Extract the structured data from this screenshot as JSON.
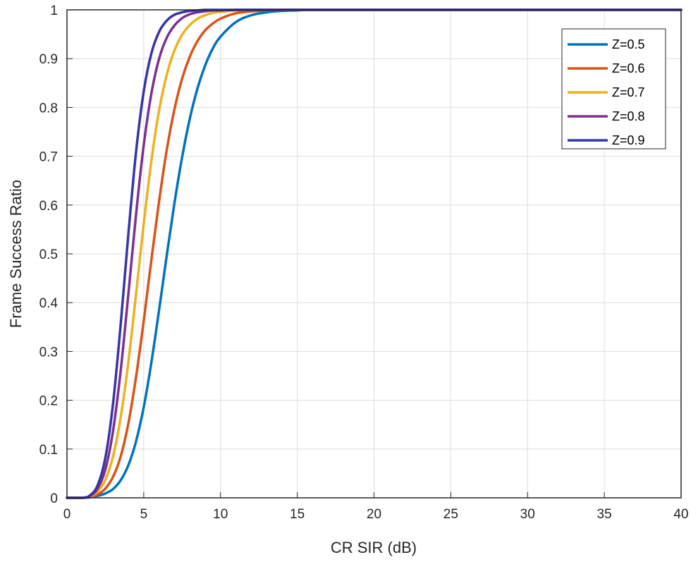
{
  "chart_data": {
    "type": "line",
    "title": "",
    "xlabel": "CR SIR (dB)",
    "ylabel": "Frame Success Ratio",
    "xlim": [
      0,
      40
    ],
    "ylim": [
      0,
      1
    ],
    "x_ticks": [
      0,
      5,
      10,
      15,
      20,
      25,
      30,
      35,
      40
    ],
    "y_ticks": [
      0,
      0.1,
      0.2,
      0.3,
      0.4,
      0.5,
      0.6,
      0.7,
      0.8,
      0.9,
      1
    ],
    "x_tick_labels": [
      "0",
      "5",
      "10",
      "15",
      "20",
      "25",
      "30",
      "35",
      "40"
    ],
    "y_tick_labels": [
      "0",
      "0.1",
      "0.2",
      "0.3",
      "0.4",
      "0.5",
      "0.6",
      "0.7",
      "0.8",
      "0.9",
      "1"
    ],
    "grid": true,
    "legend_position": "top-right",
    "x": [
      0,
      1,
      1.5,
      2,
      2.5,
      3,
      3.5,
      4,
      4.5,
      5,
      5.5,
      6,
      6.5,
      7,
      7.5,
      8,
      8.5,
      9,
      9.5,
      10,
      11,
      12,
      13,
      14,
      15,
      16,
      18,
      20,
      25,
      30,
      35,
      40
    ],
    "series": [
      {
        "name": "Z=0.5",
        "color": "#0072BD",
        "values": [
          0,
          0,
          0.001,
          0.004,
          0.009,
          0.018,
          0.036,
          0.067,
          0.116,
          0.186,
          0.278,
          0.385,
          0.497,
          0.604,
          0.698,
          0.777,
          0.839,
          0.886,
          0.921,
          0.945,
          0.975,
          0.989,
          0.995,
          0.998,
          0.999,
          1,
          1,
          1,
          1,
          1,
          1,
          1
        ]
      },
      {
        "name": "Z=0.6",
        "color": "#D95319",
        "values": [
          0,
          0,
          0.002,
          0.007,
          0.019,
          0.043,
          0.085,
          0.153,
          0.248,
          0.363,
          0.488,
          0.608,
          0.713,
          0.796,
          0.859,
          0.904,
          0.936,
          0.958,
          0.972,
          0.982,
          0.993,
          0.997,
          0.999,
          1,
          1,
          1,
          1,
          1,
          1,
          1,
          1,
          1
        ]
      },
      {
        "name": "Z=0.7",
        "color": "#EDB120",
        "values": [
          0,
          0,
          0.003,
          0.013,
          0.037,
          0.085,
          0.165,
          0.279,
          0.418,
          0.562,
          0.691,
          0.794,
          0.867,
          0.917,
          0.949,
          0.969,
          0.982,
          0.989,
          0.994,
          0.996,
          0.999,
          1,
          1,
          1,
          1,
          1,
          1,
          1,
          1,
          1,
          1,
          1
        ]
      },
      {
        "name": "Z=0.8",
        "color": "#7E2F8E",
        "values": [
          0,
          0,
          0.004,
          0.019,
          0.058,
          0.137,
          0.261,
          0.418,
          0.581,
          0.723,
          0.829,
          0.9,
          0.943,
          0.968,
          0.983,
          0.991,
          0.995,
          0.997,
          0.999,
          0.999,
          1,
          1,
          1,
          1,
          1,
          1,
          1,
          1,
          1,
          1,
          1,
          1
        ]
      },
      {
        "name": "Z=0.9",
        "color": "#3535A8",
        "values": [
          0,
          0,
          0.005,
          0.026,
          0.082,
          0.193,
          0.356,
          0.541,
          0.709,
          0.833,
          0.911,
          0.955,
          0.978,
          0.99,
          0.995,
          0.998,
          0.999,
          1,
          1,
          1,
          1,
          1,
          1,
          1,
          1,
          1,
          1,
          1,
          1,
          1,
          1,
          1
        ]
      }
    ]
  }
}
